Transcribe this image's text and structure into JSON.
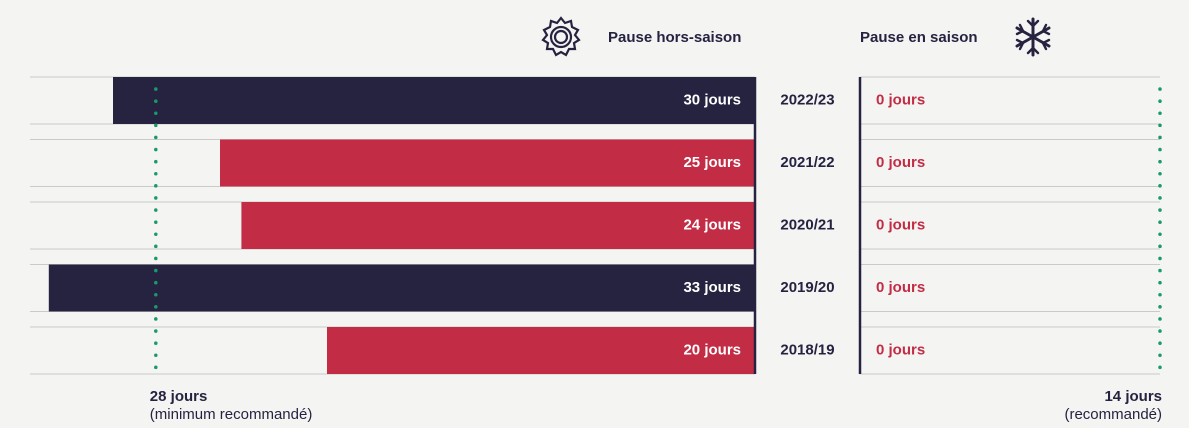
{
  "chart_data": {
    "type": "bar",
    "categories": [
      "2022/23",
      "2021/22",
      "2020/21",
      "2019/20",
      "2018/19"
    ],
    "series": [
      {
        "name": "Pause hors-saison",
        "values": [
          30,
          25,
          24,
          33,
          20
        ],
        "value_labels": [
          "30 jours",
          "25 jours",
          "24 jours",
          "33 jours",
          "20 jours"
        ],
        "colors": [
          "#262341",
          "#c22d45",
          "#c22d45",
          "#262341",
          "#c22d45"
        ]
      },
      {
        "name": "Pause en saison",
        "axis": "x2",
        "values": [
          0,
          0,
          0,
          0,
          0
        ],
        "value_labels": [
          "0 jours",
          "0 jours",
          "0 jours",
          "0 jours",
          "0 jours"
        ],
        "color": "#c22d45"
      }
    ],
    "xlim": [
      0,
      35
    ],
    "x2lim": [
      0,
      14
    ],
    "annotations": [
      {
        "value": 28,
        "axis": "x",
        "label": "28 jours",
        "note": "(minimum recommandé)",
        "color": "#1a9a6a"
      },
      {
        "value": 14,
        "axis": "x2",
        "label": "14 jours",
        "note": "(recommandé)",
        "color": "#1a9a6a"
      }
    ]
  }
}
